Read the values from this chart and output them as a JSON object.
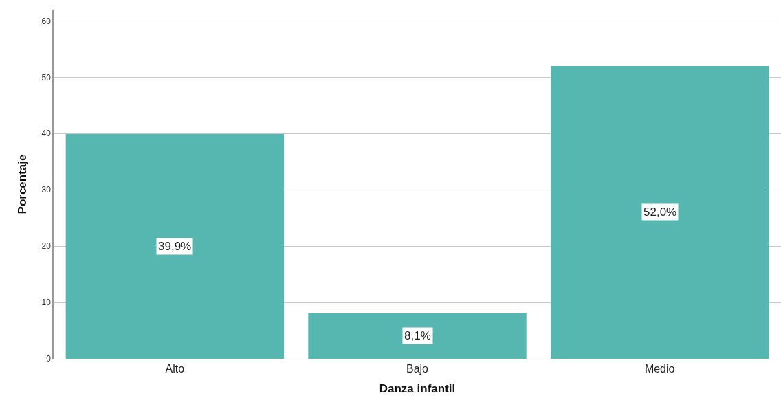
{
  "chart_data": {
    "type": "bar",
    "xlabel": "Danza infantil",
    "ylabel": "Porcentaje",
    "categories": [
      "Alto",
      "Bajo",
      "Medio"
    ],
    "values": [
      39.9,
      8.1,
      52.0
    ],
    "value_labels": [
      "39,9%",
      "8,1%",
      "52,0%"
    ],
    "color": "#55b7b0",
    "ylim": [
      0,
      62
    ],
    "yticks": [
      0,
      10,
      20,
      30,
      40,
      50,
      60
    ],
    "grid": "y"
  }
}
